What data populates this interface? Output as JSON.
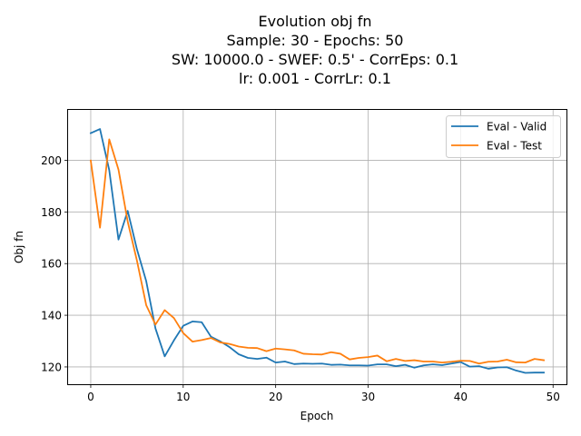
{
  "chart_data": {
    "type": "line",
    "title_lines": [
      "Evolution obj fn",
      "Sample: 30 - Epochs: 50",
      "SW: 10000.0 - SWEF: 0.5' - CorrEps: 0.1",
      "lr: 0.001 - CorrLr: 0.1"
    ],
    "xlabel": "Epoch",
    "ylabel": "Obj fn",
    "xlim": [
      -2.45,
      51.45
    ],
    "ylim": [
      113.3,
      219.5
    ],
    "xticks": [
      0,
      10,
      20,
      30,
      40,
      50
    ],
    "yticks": [
      120,
      140,
      160,
      180,
      200
    ],
    "grid": true,
    "legend_position": "top-right",
    "x": [
      0,
      1,
      2,
      3,
      4,
      5,
      6,
      7,
      8,
      9,
      10,
      11,
      12,
      13,
      14,
      15,
      16,
      17,
      18,
      19,
      20,
      21,
      22,
      23,
      24,
      25,
      26,
      27,
      28,
      29,
      30,
      31,
      32,
      33,
      34,
      35,
      36,
      37,
      38,
      39,
      40,
      41,
      42,
      43,
      44,
      45,
      46,
      47,
      48,
      49
    ],
    "series": [
      {
        "name": "Eval - Valid",
        "color": "#1f77b4",
        "values": [
          210.5,
          212.1,
          196.2,
          169.3,
          180.4,
          165.5,
          153.2,
          134.9,
          124.1,
          130.3,
          135.9,
          137.6,
          137.3,
          131.7,
          129.9,
          127.7,
          124.9,
          123.5,
          123.1,
          123.6,
          121.7,
          122.1,
          121.1,
          121.3,
          121.2,
          121.3,
          120.8,
          120.9,
          120.6,
          120.6,
          120.5,
          121.0,
          121.0,
          120.3,
          120.8,
          119.7,
          120.6,
          121.0,
          120.7,
          121.3,
          121.9,
          120.1,
          120.3,
          119.3,
          119.8,
          119.9,
          118.6,
          117.7,
          117.8,
          117.8
        ]
      },
      {
        "name": "Eval - Test",
        "color": "#ff7f0e",
        "values": [
          199.9,
          173.9,
          208.1,
          196.4,
          176.2,
          161.1,
          143.9,
          136.4,
          142.0,
          138.9,
          133.1,
          129.8,
          130.4,
          131.2,
          129.5,
          128.9,
          127.9,
          127.4,
          127.3,
          126.1,
          127.1,
          126.8,
          126.4,
          125.1,
          124.9,
          124.8,
          125.7,
          125.1,
          122.9,
          123.5,
          123.8,
          124.4,
          122.2,
          123.1,
          122.3,
          122.6,
          122.1,
          122.1,
          121.7,
          122.0,
          122.4,
          122.3,
          121.3,
          122.0,
          122.1,
          122.8,
          121.8,
          121.7,
          123.1,
          122.6
        ]
      }
    ]
  }
}
